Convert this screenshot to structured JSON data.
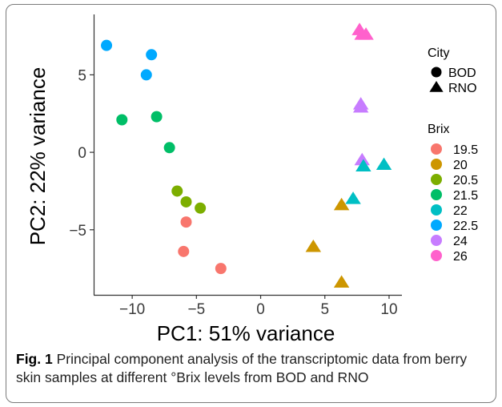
{
  "chart_data": {
    "type": "scatter",
    "title": "",
    "xlabel": "PC1: 51% variance",
    "ylabel": "PC2: 22% variance",
    "xlim": [
      -13,
      11
    ],
    "ylim": [
      -9.2,
      8.9
    ],
    "xticks": [
      -10,
      -5,
      0,
      5,
      10
    ],
    "yticks": [
      5,
      0,
      -5
    ],
    "xtick_labels": [
      "−10",
      "−5",
      "0",
      "5",
      "10"
    ],
    "ytick_labels": [
      "5",
      "0",
      "−5"
    ],
    "grid": false,
    "legend_placement": "right",
    "legends": {
      "shape": {
        "title": "City",
        "entries": [
          {
            "label": "BOD",
            "shape": "circle"
          },
          {
            "label": "RNO",
            "shape": "triangle"
          }
        ]
      },
      "color": {
        "title": "Brix",
        "entries": [
          {
            "label": "19.5",
            "color": "#F8766D"
          },
          {
            "label": "20",
            "color": "#CD9600"
          },
          {
            "label": "20.5",
            "color": "#7CAE00"
          },
          {
            "label": "21.5",
            "color": "#00BE67"
          },
          {
            "label": "22",
            "color": "#00BFC4"
          },
          {
            "label": "22.5",
            "color": "#00A9FF"
          },
          {
            "label": "24",
            "color": "#C77CFF"
          },
          {
            "label": "26",
            "color": "#FF61CC"
          }
        ]
      }
    },
    "points": [
      {
        "x": -12.0,
        "y": 6.9,
        "city": "BOD",
        "brix": "22.5"
      },
      {
        "x": -8.5,
        "y": 6.3,
        "city": "BOD",
        "brix": "22.5"
      },
      {
        "x": -8.9,
        "y": 5.0,
        "city": "BOD",
        "brix": "22.5"
      },
      {
        "x": -10.8,
        "y": 2.1,
        "city": "BOD",
        "brix": "21.5"
      },
      {
        "x": -8.1,
        "y": 2.3,
        "city": "BOD",
        "brix": "21.5"
      },
      {
        "x": -7.1,
        "y": 0.3,
        "city": "BOD",
        "brix": "21.5"
      },
      {
        "x": -6.5,
        "y": -2.5,
        "city": "BOD",
        "brix": "20.5"
      },
      {
        "x": -5.8,
        "y": -3.2,
        "city": "BOD",
        "brix": "20.5"
      },
      {
        "x": -4.7,
        "y": -3.6,
        "city": "BOD",
        "brix": "20.5"
      },
      {
        "x": -5.8,
        "y": -4.5,
        "city": "BOD",
        "brix": "19.5"
      },
      {
        "x": -6.0,
        "y": -6.4,
        "city": "BOD",
        "brix": "19.5"
      },
      {
        "x": -3.1,
        "y": -7.5,
        "city": "BOD",
        "brix": "19.5"
      },
      {
        "x": 7.7,
        "y": 7.9,
        "city": "RNO",
        "brix": "26"
      },
      {
        "x": 7.9,
        "y": 7.6,
        "city": "RNO",
        "brix": "26"
      },
      {
        "x": 8.2,
        "y": 7.6,
        "city": "RNO",
        "brix": "26"
      },
      {
        "x": 7.8,
        "y": 3.1,
        "city": "RNO",
        "brix": "24"
      },
      {
        "x": 7.8,
        "y": 2.9,
        "city": "RNO",
        "brix": "24"
      },
      {
        "x": 7.9,
        "y": -0.5,
        "city": "RNO",
        "brix": "24"
      },
      {
        "x": 8.0,
        "y": -0.9,
        "city": "RNO",
        "brix": "22"
      },
      {
        "x": 9.6,
        "y": -0.8,
        "city": "RNO",
        "brix": "22"
      },
      {
        "x": 7.2,
        "y": -3.0,
        "city": "RNO",
        "brix": "22"
      },
      {
        "x": 6.3,
        "y": -3.4,
        "city": "RNO",
        "brix": "20"
      },
      {
        "x": 4.1,
        "y": -6.1,
        "city": "RNO",
        "brix": "20"
      },
      {
        "x": 6.3,
        "y": -8.4,
        "city": "RNO",
        "brix": "20"
      }
    ]
  },
  "caption": {
    "label": "Fig. 1",
    "text": "Principal component analysis of the transcriptomic data from berry skin samples at different °Brix levels from BOD and RNO"
  }
}
